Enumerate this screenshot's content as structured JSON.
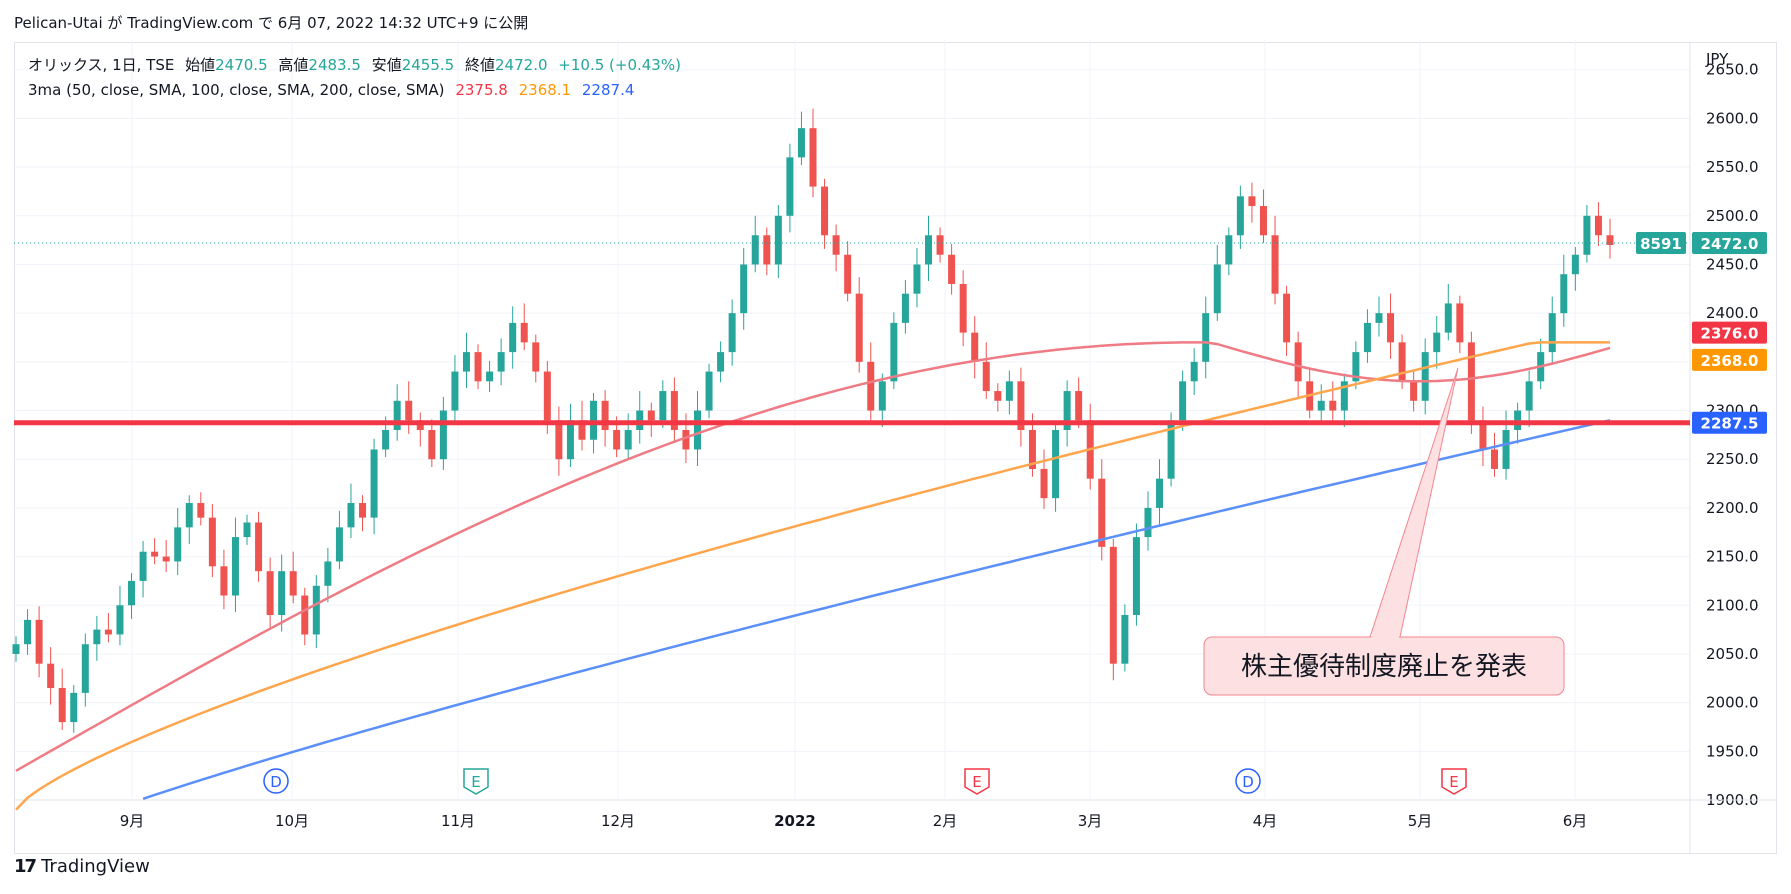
{
  "header": {
    "text": "Pelican-Utai が TradingView.com で 6月 07, 2022 14:32 UTC+9 に公開"
  },
  "legend": {
    "symbol": "オリックス, 1日, TSE",
    "open_label": "始値",
    "open": "2470.5",
    "high_label": "高値",
    "high": "2483.5",
    "low_label": "安値",
    "low": "2455.5",
    "close_label": "終値",
    "close": "2472.0",
    "change": "+10.5 (+0.43%)",
    "ma_label": "3ma (50, close, SMA, 100, close, SMA, 200, close, SMA)",
    "ma50": "2375.8",
    "ma100": "2368.1",
    "ma200": "2287.4"
  },
  "currency": "JPY",
  "price_labels": {
    "last_volume": "8591",
    "last": "2472.0",
    "ma50": "2376.0",
    "ma100": "2368.0",
    "ma200": "2287.5"
  },
  "annotation": {
    "text": "株主優待制度廃止を発表"
  },
  "footer": {
    "brand": "TradingView"
  },
  "colors": {
    "up": "#26a69a",
    "down": "#ef5350",
    "ma50": "#ef7b84",
    "ma100": "#ffa64d",
    "ma200": "#5b8ff9",
    "hline": "#f23645",
    "annotation_bg": "#fde0e2",
    "annotation_border": "#f4868f"
  },
  "chart_data": {
    "type": "candlestick",
    "x_ticks": [
      "9月",
      "10月",
      "11月",
      "12月",
      "2022",
      "2月",
      "3月",
      "4月",
      "5月",
      "6月"
    ],
    "y_ticks": [
      1900,
      1950,
      2000,
      2050,
      2100,
      2150,
      2200,
      2250,
      2300,
      2350,
      2400,
      2450,
      2500,
      2550,
      2600,
      2650
    ],
    "ylim": [
      1900,
      2660
    ],
    "horizontal_line": 2287.5,
    "events": [
      {
        "label": "D",
        "x": "10月",
        "kind": "dividend"
      },
      {
        "label": "E",
        "x": "11月",
        "kind": "earnings"
      },
      {
        "label": "E",
        "x": "2月",
        "kind": "earnings"
      },
      {
        "label": "D",
        "x": "4月",
        "kind": "dividend"
      },
      {
        "label": "E",
        "x": "5月",
        "kind": "earnings"
      }
    ],
    "ohlc_approx": [
      2060,
      2085,
      2040,
      2015,
      1980,
      2010,
      2060,
      2075,
      2070,
      2100,
      2125,
      2155,
      2150,
      2145,
      2180,
      2205,
      2190,
      2140,
      2110,
      2170,
      2185,
      2135,
      2090,
      2135,
      2110,
      2070,
      2120,
      2145,
      2180,
      2205,
      2190,
      2260,
      2280,
      2310,
      2290,
      2280,
      2250,
      2300,
      2340,
      2360,
      2330,
      2340,
      2360,
      2390,
      2370,
      2340,
      2290,
      2250,
      2290,
      2270,
      2310,
      2280,
      2260,
      2280,
      2300,
      2290,
      2320,
      2280,
      2260,
      2300,
      2340,
      2360,
      2400,
      2450,
      2480,
      2450,
      2500,
      2560,
      2590,
      2530,
      2480,
      2460,
      2420,
      2350,
      2300,
      2330,
      2390,
      2420,
      2450,
      2480,
      2460,
      2430,
      2380,
      2350,
      2320,
      2310,
      2330,
      2280,
      2240,
      2210,
      2280,
      2320,
      2290,
      2230,
      2160,
      2040,
      2090,
      2170,
      2200,
      2230,
      2290,
      2330,
      2350,
      2400,
      2450,
      2480,
      2520,
      2510,
      2480,
      2420,
      2370,
      2330,
      2300,
      2310,
      2300,
      2330,
      2360,
      2390,
      2400,
      2370,
      2330,
      2310,
      2360,
      2380,
      2410,
      2370,
      2290,
      2260,
      2240,
      2280,
      2300,
      2330,
      2360,
      2400,
      2440,
      2460,
      2500,
      2480,
      2470
    ],
    "series": [
      {
        "name": "SMA 50",
        "last": 2375.8
      },
      {
        "name": "SMA 100",
        "last": 2368.1
      },
      {
        "name": "SMA 200",
        "last": 2287.4
      }
    ]
  }
}
